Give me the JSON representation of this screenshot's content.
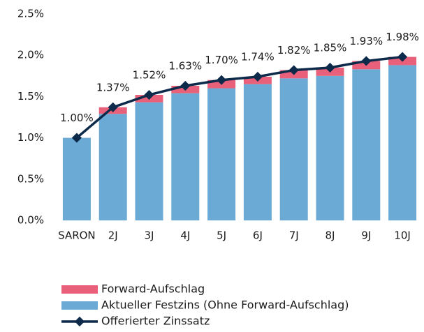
{
  "chart_data": {
    "type": "bar",
    "stacked": true,
    "categories": [
      "SARON",
      "2J",
      "3J",
      "4J",
      "5J",
      "6J",
      "7J",
      "8J",
      "9J",
      "10J"
    ],
    "series": [
      {
        "name": "Forward-Aufschlag",
        "type": "bar",
        "color": "#e8607a",
        "values": [
          0,
          0.08,
          0.09,
          0.09,
          0.1,
          0.09,
          0.1,
          0.1,
          0.1,
          0.1
        ]
      },
      {
        "name": "Aktueller Festzins (Ohne Forward-Aufschlag)",
        "type": "bar",
        "color": "#6aaad4",
        "values": [
          1.0,
          1.29,
          1.43,
          1.54,
          1.6,
          1.65,
          1.72,
          1.75,
          1.83,
          1.88
        ]
      },
      {
        "name": "Offerierter Zinssatz",
        "type": "line",
        "color": "#0d2a4a",
        "values": [
          1.0,
          1.37,
          1.52,
          1.63,
          1.7,
          1.74,
          1.82,
          1.85,
          1.93,
          1.98
        ],
        "value_labels": [
          "1.00%",
          "1.37%",
          "1.52%",
          "1.63%",
          "1.70%",
          "1.74%",
          "1.82%",
          "1.85%",
          "1.93%",
          "1.98%"
        ]
      }
    ],
    "ylim": [
      0,
      2.5
    ],
    "yticks": [
      {
        "value": 0,
        "label": "0.0%"
      },
      {
        "value": 0.5,
        "label": "0.5%"
      },
      {
        "value": 1,
        "label": "1.0%"
      },
      {
        "value": 1.5,
        "label": "1.5%"
      },
      {
        "value": 2,
        "label": "2.0%"
      },
      {
        "value": 2.5,
        "label": "2.5%"
      }
    ],
    "grid": false,
    "legend": "bottom"
  }
}
